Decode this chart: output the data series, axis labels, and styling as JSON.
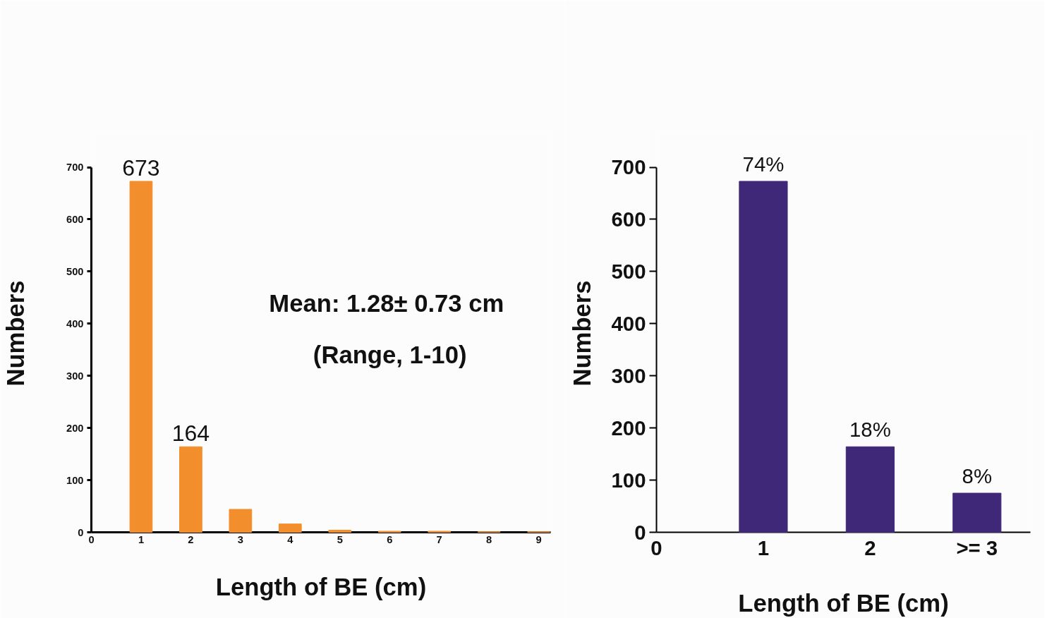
{
  "chart_data": [
    {
      "type": "bar",
      "xlabel": "Length of BE (cm)",
      "ylabel": "Numbers",
      "x": [
        1,
        2,
        3,
        4,
        5,
        6,
        7,
        8,
        9
      ],
      "values": [
        673,
        164,
        44,
        16,
        4,
        2,
        2,
        1,
        1
      ],
      "color": "#f28e2b",
      "value_labels": [
        "673",
        "164",
        null,
        null,
        null,
        null,
        null,
        null,
        null
      ],
      "xlim": [
        0,
        9.24
      ],
      "xticks": [
        0,
        1,
        2,
        3,
        4,
        5,
        6,
        7,
        8,
        9
      ],
      "ylim": [
        0,
        700
      ],
      "yticks": [
        0,
        100,
        200,
        300,
        400,
        500,
        600,
        700
      ],
      "annotations": [
        "Mean: 1.28±  0.73 cm",
        "(Range, 1-10)"
      ],
      "grid": false,
      "legend": false
    },
    {
      "type": "bar",
      "xlabel": "Length of BE (cm)",
      "ylabel": "Numbers",
      "x": [
        1,
        2,
        3
      ],
      "values": [
        673,
        164,
        75
      ],
      "color": "#3f2878",
      "annotations": [
        {
          "text": "74%",
          "x": 1,
          "y": 673
        },
        {
          "text": "18%",
          "x": 2,
          "y": 164
        },
        {
          "text": "8%",
          "x": 3,
          "y": 75
        }
      ],
      "xlim": [
        0,
        3.5
      ],
      "xticks": [
        0,
        1,
        2,
        {
          "value": 3,
          "label": ">= 3"
        }
      ],
      "ylim": [
        0,
        700
      ],
      "yticks": [
        0,
        100,
        200,
        300,
        400,
        500,
        600,
        700
      ],
      "grid": false,
      "legend": false
    }
  ]
}
